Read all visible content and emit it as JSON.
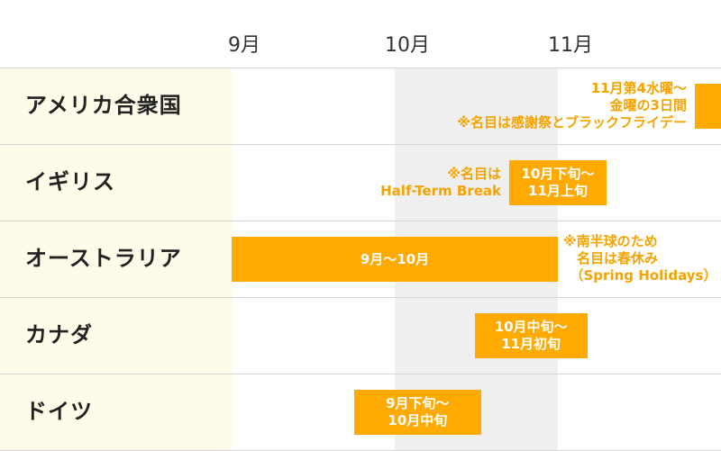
{
  "chart_data": {
    "type": "gantt",
    "x_unit": "month",
    "xlim": [
      9,
      12
    ],
    "x_ticks": [
      {
        "value": 9,
        "label": "9月"
      },
      {
        "value": 10,
        "label": "10月"
      },
      {
        "value": 11,
        "label": "11月"
      }
    ],
    "highlight_band": [
      10,
      11
    ],
    "categories": [
      "アメリカ合衆国",
      "イギリス",
      "オーストラリア",
      "カナダ",
      "ドイツ"
    ],
    "tasks": [
      {
        "category": "アメリカ合衆国",
        "start": 11.84,
        "end": 12.0,
        "label": "",
        "note": "11月第4水曜～\n金曜の3日間\n※名目は感謝祭とブラックフライデー"
      },
      {
        "category": "イギリス",
        "start": 10.7,
        "end": 11.3,
        "label": "10月下旬～\n11月上旬",
        "note": "※名目は\nHalf-Term Break"
      },
      {
        "category": "オーストラリア",
        "start": 9.0,
        "end": 11.0,
        "label": "9月～10月",
        "note": "※南半球のため\n　名目は春休み\n　（Spring Holidays）"
      },
      {
        "category": "カナダ",
        "start": 10.49,
        "end": 11.18,
        "label": "10月中旬～\n11月初旬",
        "note": ""
      },
      {
        "category": "ドイツ",
        "start": 9.75,
        "end": 10.53,
        "label": "9月下旬～\n10月中旬",
        "note": ""
      }
    ],
    "colors": {
      "bar": "#FFAA00",
      "note": "#F5A300",
      "label_column": "#FFFBEA",
      "band": "#EFEFEF",
      "grid": "#D6D6D6"
    }
  }
}
